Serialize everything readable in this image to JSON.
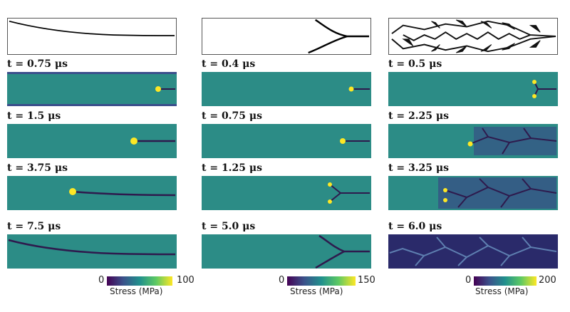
{
  "columns": [
    {
      "labels": [
        "t = 0.75 μs",
        "t = 1.5 μs",
        "t = 3.75 μs",
        "t = 7.5 μs"
      ],
      "colorbar": {
        "min": "0",
        "max": "100",
        "title": "Stress (MPa)"
      }
    },
    {
      "labels": [
        "t = 0.4 μs",
        "t = 0.75 μs",
        "t = 1.25 μs",
        "t = 5.0 μs"
      ],
      "colorbar": {
        "min": "0",
        "max": "150",
        "title": "Stress (MPa)"
      }
    },
    {
      "labels": [
        "t = 0.5 μs",
        "t = 2.25 μs",
        "t = 3.25 μs",
        "t = 6.0 μs"
      ],
      "colorbar": {
        "min": "0",
        "max": "200",
        "title": "Stress (MPa)"
      }
    }
  ],
  "colors": {
    "field": "#2c8c86",
    "edge": "#3b4f8c",
    "crack": "#2e1a4d",
    "hot": "#fde725"
  }
}
